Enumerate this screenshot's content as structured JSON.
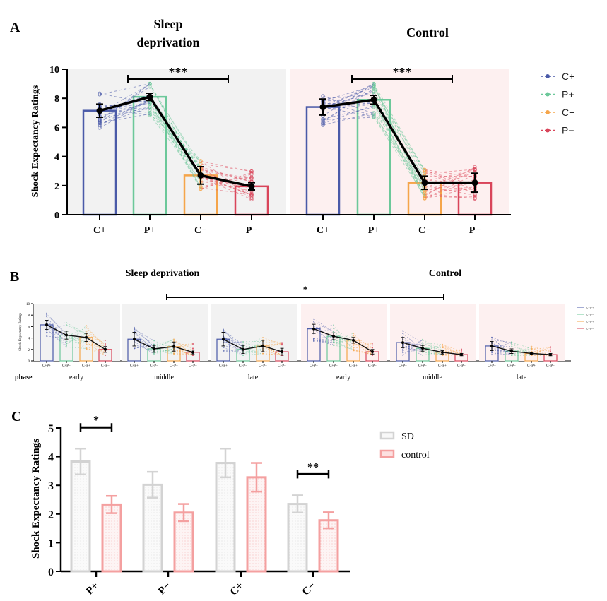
{
  "figure": {
    "panel_labels": [
      "A",
      "B",
      "C"
    ]
  },
  "chart_data": [
    {
      "id": "A",
      "type": "bar",
      "panel_label": "A",
      "ylabel": "Shock Expectancy Ratings",
      "ylim": [
        0,
        10
      ],
      "yticks": [
        0,
        2,
        4,
        6,
        8,
        10
      ],
      "categories": [
        "C+",
        "P+",
        "C−",
        "P−"
      ],
      "legend": {
        "placement": "right",
        "entries": [
          {
            "label": "C+",
            "color": "#4a5aa8"
          },
          {
            "label": "P+",
            "color": "#6cc89a"
          },
          {
            "label": "C−",
            "color": "#f5a54a"
          },
          {
            "label": "P−",
            "color": "#d9455a"
          }
        ]
      },
      "subplots": [
        {
          "title": "Sleep\ndeprivation",
          "title_lines": [
            "Sleep",
            "deprivation"
          ],
          "background": "#f2f2f2",
          "values": [
            7.15,
            8.1,
            2.7,
            1.95
          ],
          "errors": [
            0.45,
            0.25,
            0.6,
            0.25
          ],
          "significance": {
            "label": "***",
            "from": "P+",
            "to": "C−"
          }
        },
        {
          "title": "Control",
          "title_lines": [
            "Control"
          ],
          "background": "#fdf0f0",
          "values": [
            7.4,
            7.9,
            2.2,
            2.2
          ],
          "errors": [
            0.55,
            0.3,
            0.45,
            0.65
          ],
          "significance": {
            "label": "***",
            "from": "P+",
            "to": "C−"
          }
        }
      ],
      "colors": [
        "#4a5aa8",
        "#6cc89a",
        "#f5a54a",
        "#d9455a"
      ]
    },
    {
      "id": "B",
      "type": "bar",
      "panel_label": "B",
      "ylabel": "Shock Expectancy Ratings",
      "xlabel": "phase",
      "ylim": [
        0,
        10
      ],
      "yticks": [
        0,
        2,
        4,
        6,
        8,
        10
      ],
      "categories": [
        "C+P+",
        "C+P−",
        "C−P+",
        "C−P−"
      ],
      "group_titles": [
        "Sleep deprivation",
        "Control"
      ],
      "significance": {
        "label": "*",
        "from": "SD middle",
        "to": "Control middle"
      },
      "legend": {
        "placement": "right",
        "entries": [
          {
            "label": "C+P+",
            "color": "#4a5aa8"
          },
          {
            "label": "C+P−",
            "color": "#6cc89a"
          },
          {
            "label": "C−P+",
            "color": "#f5a54a"
          },
          {
            "label": "C−P−",
            "color": "#d9455a"
          }
        ]
      },
      "subplots": [
        {
          "group": "Sleep deprivation",
          "phase": "early",
          "values": [
            6.3,
            4.5,
            4.1,
            2.0
          ],
          "errors": [
            0.8,
            0.7,
            0.7,
            0.5
          ]
        },
        {
          "group": "Sleep deprivation",
          "phase": "middle",
          "values": [
            3.8,
            2.1,
            2.5,
            1.5
          ],
          "errors": [
            1.2,
            0.6,
            0.8,
            0.4
          ]
        },
        {
          "group": "Sleep deprivation",
          "phase": "late",
          "values": [
            3.8,
            2.0,
            2.6,
            1.6
          ],
          "errors": [
            1.2,
            0.7,
            1.0,
            0.6
          ]
        },
        {
          "group": "Control",
          "phase": "early",
          "values": [
            5.6,
            4.3,
            3.6,
            1.6
          ],
          "errors": [
            0.8,
            0.6,
            0.5,
            0.4
          ]
        },
        {
          "group": "Control",
          "phase": "middle",
          "values": [
            3.2,
            2.2,
            1.5,
            1.1
          ],
          "errors": [
            0.9,
            0.5,
            0.3,
            0.2
          ]
        },
        {
          "group": "Control",
          "phase": "late",
          "values": [
            2.6,
            1.7,
            1.3,
            1.1
          ],
          "errors": [
            0.8,
            0.4,
            0.2,
            0.2
          ]
        }
      ],
      "colors": [
        "#4a5aa8",
        "#6cc89a",
        "#f5a54a",
        "#d9455a"
      ]
    },
    {
      "id": "C",
      "type": "bar",
      "panel_label": "C",
      "ylabel": "Shock Expectancy Ratings",
      "ylim": [
        0,
        5
      ],
      "yticks": [
        0,
        1,
        2,
        3,
        4,
        5
      ],
      "categories": [
        "P+",
        "P−",
        "C+",
        "C−"
      ],
      "legend": {
        "placement": "top-right",
        "entries": [
          {
            "label": "SD",
            "color": "#d3d3d3"
          },
          {
            "label": "control",
            "color": "#f4a0a0"
          }
        ]
      },
      "series": [
        {
          "name": "SD",
          "color": "#d3d3d3",
          "values": [
            3.83,
            3.02,
            3.78,
            2.35
          ],
          "errors": [
            0.45,
            0.45,
            0.5,
            0.3
          ]
        },
        {
          "name": "control",
          "color": "#f4a0a0",
          "values": [
            2.33,
            2.05,
            3.28,
            1.78
          ],
          "errors": [
            0.3,
            0.3,
            0.5,
            0.28
          ]
        }
      ],
      "significance": [
        {
          "category": "P+",
          "label": "*"
        },
        {
          "category": "C−",
          "label": "**"
        }
      ]
    }
  ]
}
